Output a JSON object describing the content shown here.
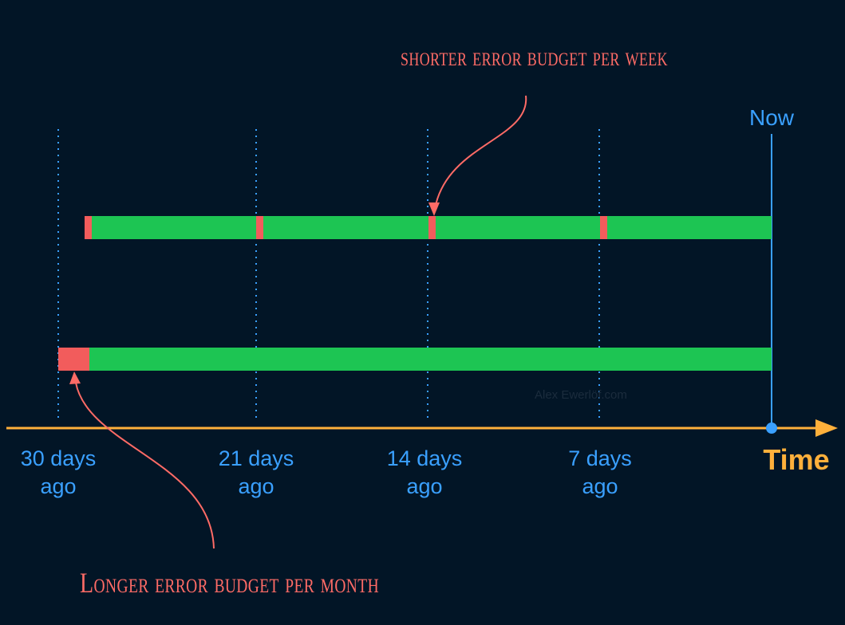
{
  "ticks": [
    {
      "line1": "30 days",
      "line2": "ago"
    },
    {
      "line1": "21 days",
      "line2": "ago"
    },
    {
      "line1": "14 days",
      "line2": "ago"
    },
    {
      "line1": "7 days",
      "line2": "ago"
    }
  ],
  "now_label": "Now",
  "axis_label": "Time",
  "annotations": {
    "week": "shorter error budget per week",
    "month": "Longer error budget per month"
  },
  "watermark": "Alex Ewerlöf.com",
  "colors": {
    "background": "#021526",
    "good": "#1dc553",
    "error_budget": "#f25c5c",
    "axis": "#ffb03b",
    "ticks": "#3aa0ff",
    "annotation": "#ff6b66"
  }
}
